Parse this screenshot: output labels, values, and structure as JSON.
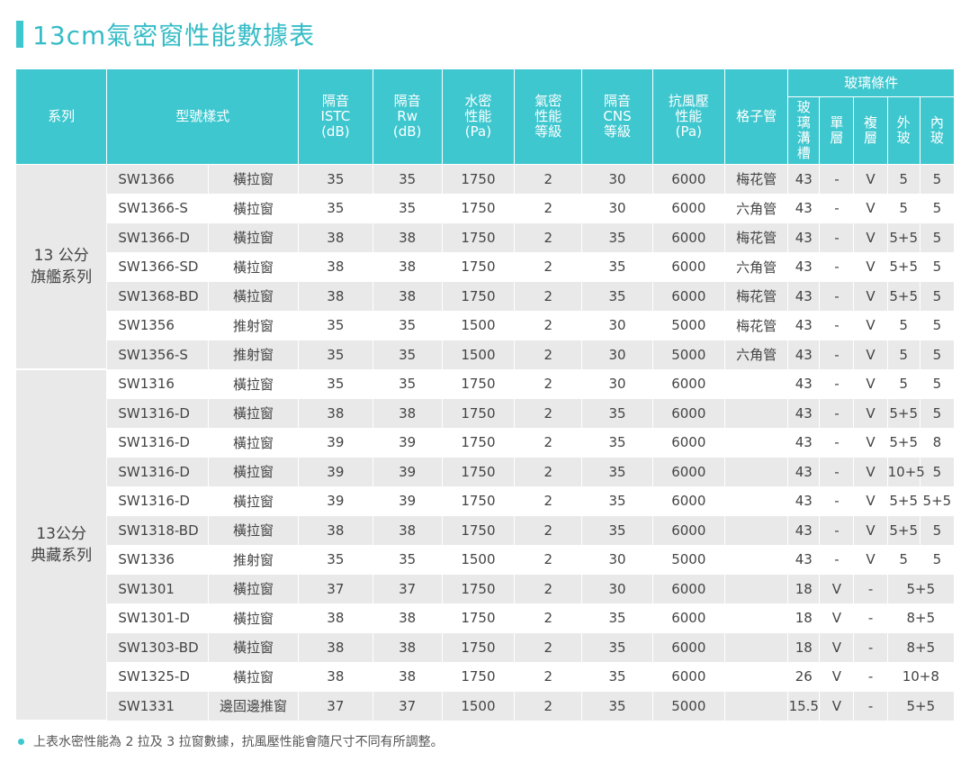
{
  "title": "13cm氣密窗性能數據表",
  "header": {
    "series": "系列",
    "model": "型號樣式",
    "istc": [
      "隔音",
      "ISTC",
      "(dB)"
    ],
    "rw": [
      "隔音",
      "Rw",
      "(dB)"
    ],
    "water": [
      "水密",
      "性能",
      "(Pa)"
    ],
    "air": [
      "氣密",
      "性能",
      "等級"
    ],
    "cns": [
      "隔音",
      "CNS",
      "等級"
    ],
    "wind": [
      "抗風壓",
      "性能",
      "(Pa)"
    ],
    "grid": "格子管",
    "glass_group": "玻璃條件",
    "glass_slot": [
      "玻",
      "璃",
      "溝",
      "槽"
    ],
    "single": [
      "單",
      "層"
    ],
    "multi": [
      "複",
      "層"
    ],
    "outer": [
      "外",
      "玻"
    ],
    "inner": [
      "內",
      "玻"
    ]
  },
  "groups": [
    {
      "name_lines": [
        "13 公分",
        "旗艦系列"
      ],
      "rowspan": 7
    },
    {
      "name_lines": [
        "13公分",
        "典藏系列"
      ],
      "rowspan": 12
    }
  ],
  "rows": [
    {
      "model": "SW1366",
      "style": "橫拉窗",
      "istc": "35",
      "rw": "35",
      "water": "1750",
      "air": "2",
      "cns": "30",
      "wind": "6000",
      "grid": "梅花管",
      "slot": "43",
      "single": "-",
      "multi": "V",
      "outer": "5",
      "inner": "5"
    },
    {
      "model": "SW1366-S",
      "style": "橫拉窗",
      "istc": "35",
      "rw": "35",
      "water": "1750",
      "air": "2",
      "cns": "30",
      "wind": "6000",
      "grid": "六角管",
      "slot": "43",
      "single": "-",
      "multi": "V",
      "outer": "5",
      "inner": "5"
    },
    {
      "model": "SW1366-D",
      "style": "橫拉窗",
      "istc": "38",
      "rw": "38",
      "water": "1750",
      "air": "2",
      "cns": "35",
      "wind": "6000",
      "grid": "梅花管",
      "slot": "43",
      "single": "-",
      "multi": "V",
      "outer": "5+5",
      "inner": "5"
    },
    {
      "model": "SW1366-SD",
      "style": "橫拉窗",
      "istc": "38",
      "rw": "38",
      "water": "1750",
      "air": "2",
      "cns": "35",
      "wind": "6000",
      "grid": "六角管",
      "slot": "43",
      "single": "-",
      "multi": "V",
      "outer": "5+5",
      "inner": "5"
    },
    {
      "model": "SW1368-BD",
      "style": "橫拉窗",
      "istc": "38",
      "rw": "38",
      "water": "1750",
      "air": "2",
      "cns": "35",
      "wind": "6000",
      "grid": "梅花管",
      "slot": "43",
      "single": "-",
      "multi": "V",
      "outer": "5+5",
      "inner": "5"
    },
    {
      "model": "SW1356",
      "style": "推射窗",
      "istc": "35",
      "rw": "35",
      "water": "1500",
      "air": "2",
      "cns": "30",
      "wind": "5000",
      "grid": "梅花管",
      "slot": "43",
      "single": "-",
      "multi": "V",
      "outer": "5",
      "inner": "5"
    },
    {
      "model": "SW1356-S",
      "style": "推射窗",
      "istc": "35",
      "rw": "35",
      "water": "1500",
      "air": "2",
      "cns": "30",
      "wind": "5000",
      "grid": "六角管",
      "slot": "43",
      "single": "-",
      "multi": "V",
      "outer": "5",
      "inner": "5"
    },
    {
      "model": "SW1316",
      "style": "橫拉窗",
      "istc": "35",
      "rw": "35",
      "water": "1750",
      "air": "2",
      "cns": "30",
      "wind": "6000",
      "grid": "",
      "slot": "43",
      "single": "-",
      "multi": "V",
      "outer": "5",
      "inner": "5"
    },
    {
      "model": "SW1316-D",
      "style": "橫拉窗",
      "istc": "38",
      "rw": "38",
      "water": "1750",
      "air": "2",
      "cns": "35",
      "wind": "6000",
      "grid": "",
      "slot": "43",
      "single": "-",
      "multi": "V",
      "outer": "5+5",
      "inner": "5"
    },
    {
      "model": "SW1316-D",
      "style": "橫拉窗",
      "istc": "39",
      "rw": "39",
      "water": "1750",
      "air": "2",
      "cns": "35",
      "wind": "6000",
      "grid": "",
      "slot": "43",
      "single": "-",
      "multi": "V",
      "outer": "5+5",
      "inner": "8"
    },
    {
      "model": "SW1316-D",
      "style": "橫拉窗",
      "istc": "39",
      "rw": "39",
      "water": "1750",
      "air": "2",
      "cns": "35",
      "wind": "6000",
      "grid": "",
      "slot": "43",
      "single": "-",
      "multi": "V",
      "outer": "10+5",
      "inner": "5"
    },
    {
      "model": "SW1316-D",
      "style": "橫拉窗",
      "istc": "39",
      "rw": "39",
      "water": "1750",
      "air": "2",
      "cns": "35",
      "wind": "6000",
      "grid": "",
      "slot": "43",
      "single": "-",
      "multi": "V",
      "outer": "5+5",
      "inner": "5+5"
    },
    {
      "model": "SW1318-BD",
      "style": "橫拉窗",
      "istc": "38",
      "rw": "38",
      "water": "1750",
      "air": "2",
      "cns": "35",
      "wind": "6000",
      "grid": "",
      "slot": "43",
      "single": "-",
      "multi": "V",
      "outer": "5+5",
      "inner": "5"
    },
    {
      "model": "SW1336",
      "style": "推射窗",
      "istc": "35",
      "rw": "35",
      "water": "1500",
      "air": "2",
      "cns": "30",
      "wind": "5000",
      "grid": "",
      "slot": "43",
      "single": "-",
      "multi": "V",
      "outer": "5",
      "inner": "5"
    },
    {
      "model": "SW1301",
      "style": "橫拉窗",
      "istc": "37",
      "rw": "37",
      "water": "1750",
      "air": "2",
      "cns": "30",
      "wind": "6000",
      "grid": "",
      "slot": "18",
      "single": "V",
      "multi": "-",
      "glass": "5+5"
    },
    {
      "model": "SW1301-D",
      "style": "橫拉窗",
      "istc": "38",
      "rw": "38",
      "water": "1750",
      "air": "2",
      "cns": "35",
      "wind": "6000",
      "grid": "",
      "slot": "18",
      "single": "V",
      "multi": "-",
      "glass": "8+5"
    },
    {
      "model": "SW1303-BD",
      "style": "橫拉窗",
      "istc": "38",
      "rw": "38",
      "water": "1750",
      "air": "2",
      "cns": "35",
      "wind": "6000",
      "grid": "",
      "slot": "18",
      "single": "V",
      "multi": "-",
      "glass": "8+5"
    },
    {
      "model": "SW1325-D",
      "style": "橫拉窗",
      "istc": "38",
      "rw": "38",
      "water": "1750",
      "air": "2",
      "cns": "35",
      "wind": "6000",
      "grid": "",
      "slot": "26",
      "single": "V",
      "multi": "-",
      "glass": "10+8"
    },
    {
      "model": "SW1331",
      "style": "邊固邊推窗",
      "istc": "37",
      "rw": "37",
      "water": "1500",
      "air": "2",
      "cns": "35",
      "wind": "5000",
      "grid": "",
      "slot": "15.5",
      "single": "V",
      "multi": "-",
      "glass": "5+5"
    }
  ],
  "note": "上表水密性能為 2 拉及 3 拉窗數據，抗風壓性能會隨尺寸不同有所調整。",
  "colors": {
    "accent": "#3ec7cf",
    "row_alt": "#e9e9e9"
  }
}
